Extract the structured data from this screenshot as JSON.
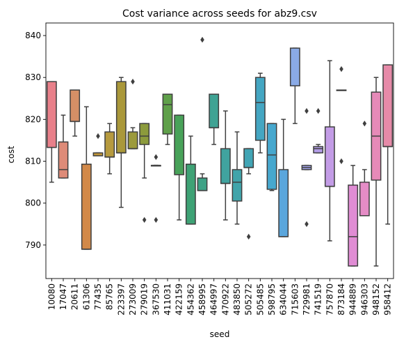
{
  "chart_data": {
    "type": "box",
    "title": "Cost variance across seeds for abz9.csv",
    "xlabel": "seed",
    "ylabel": "cost",
    "ylim": [
      782,
      843
    ],
    "yticks": [
      790,
      800,
      810,
      820,
      830,
      840
    ],
    "grid": false,
    "legend": "none",
    "boxes": [
      {
        "category": "10080",
        "color": "#E8808A",
        "whislo": 805,
        "q1": 813.3,
        "med": 813.3,
        "q3": 829,
        "whishi": 829,
        "fliers": []
      },
      {
        "category": "17047",
        "color": "#DE8B78",
        "whislo": 806,
        "q1": 806,
        "med": 808,
        "q3": 814.6,
        "whishi": 821,
        "fliers": []
      },
      {
        "category": "20611",
        "color": "#D58F66",
        "whislo": 816,
        "q1": 819.5,
        "med": 819.5,
        "q3": 827,
        "whishi": 827,
        "fliers": []
      },
      {
        "category": "61306",
        "color": "#D28949",
        "whislo": 789,
        "q1": 789,
        "med": 789,
        "q3": 809.3,
        "whishi": 823,
        "fliers": []
      },
      {
        "category": "77435",
        "color": "#C0963A",
        "whislo": 811.3,
        "q1": 811.3,
        "med": 811.3,
        "q3": 812,
        "whishi": 812,
        "fliers": [
          816
        ]
      },
      {
        "category": "85765",
        "color": "#B69A3E",
        "whislo": 807,
        "q1": 811,
        "med": 811,
        "q3": 817,
        "whishi": 819,
        "fliers": []
      },
      {
        "category": "223397",
        "color": "#AA983A",
        "whislo": 799,
        "q1": 812,
        "med": 812,
        "q3": 829,
        "whishi": 830,
        "fliers": []
      },
      {
        "category": "273009",
        "color": "#9C9A3C",
        "whislo": 813,
        "q1": 813,
        "med": 813,
        "q3": 817,
        "whishi": 818,
        "fliers": [
          829
        ]
      },
      {
        "category": "279019",
        "color": "#8C9B3C",
        "whislo": 806,
        "q1": 814,
        "med": 816,
        "q3": 819,
        "whishi": 819,
        "fliers": [
          796
        ]
      },
      {
        "category": "367530",
        "color": "#7A9C3E",
        "whislo": 809,
        "q1": 809,
        "med": 809,
        "q3": 809,
        "whishi": 809,
        "fliers": [
          811,
          796
        ]
      },
      {
        "category": "411031",
        "color": "#5FA04A",
        "whislo": 814,
        "q1": 816.5,
        "med": 823.5,
        "q3": 826,
        "whishi": 826,
        "fliers": []
      },
      {
        "category": "422159",
        "color": "#48A259",
        "whislo": 796,
        "q1": 806.8,
        "med": 806.8,
        "q3": 821,
        "whishi": 821,
        "fliers": []
      },
      {
        "category": "454362",
        "color": "#3EA275",
        "whislo": 795,
        "q1": 795,
        "med": 795,
        "q3": 809.3,
        "whishi": 816,
        "fliers": []
      },
      {
        "category": "458995",
        "color": "#3EA286",
        "whislo": 803,
        "q1": 803,
        "med": 803,
        "q3": 806,
        "whishi": 807,
        "fliers": [
          839
        ]
      },
      {
        "category": "464997",
        "color": "#3FA394",
        "whislo": 814,
        "q1": 818,
        "med": 818,
        "q3": 826,
        "whishi": 826,
        "fliers": []
      },
      {
        "category": "470922",
        "color": "#40A39F",
        "whislo": 796,
        "q1": 804.7,
        "med": 804.7,
        "q3": 813,
        "whishi": 822,
        "fliers": []
      },
      {
        "category": "483850",
        "color": "#41A4AA",
        "whislo": 795,
        "q1": 800.5,
        "med": 805,
        "q3": 808,
        "whishi": 817,
        "fliers": []
      },
      {
        "category": "505272",
        "color": "#42A5B5",
        "whislo": 807,
        "q1": 808.5,
        "med": 808.5,
        "q3": 813,
        "whishi": 813,
        "fliers": [
          792
        ]
      },
      {
        "category": "505485",
        "color": "#44A6C2",
        "whislo": 812,
        "q1": 815,
        "med": 824,
        "q3": 830,
        "whishi": 831,
        "fliers": []
      },
      {
        "category": "598795",
        "color": "#47A8CE",
        "whislo": 803,
        "q1": 803.3,
        "med": 811.5,
        "q3": 819,
        "whishi": 819,
        "fliers": []
      },
      {
        "category": "634044",
        "color": "#5AA6DC",
        "whislo": 792,
        "q1": 792,
        "med": 792,
        "q3": 808,
        "whishi": 820,
        "fliers": []
      },
      {
        "category": "715603",
        "color": "#8AAAE6",
        "whislo": 819,
        "q1": 828,
        "med": 828,
        "q3": 837,
        "whishi": 837,
        "fliers": []
      },
      {
        "category": "729981",
        "color": "#A2A4E8",
        "whislo": 808,
        "q1": 808,
        "med": 808.5,
        "q3": 809,
        "whishi": 809,
        "fliers": [
          822,
          795
        ]
      },
      {
        "category": "741519",
        "color": "#B39DE8",
        "whislo": 812,
        "q1": 812,
        "med": 813,
        "q3": 813.5,
        "whishi": 814,
        "fliers": [
          822
        ]
      },
      {
        "category": "757870",
        "color": "#C39CE6",
        "whislo": 791,
        "q1": 804,
        "med": 804,
        "q3": 818.2,
        "whishi": 834,
        "fliers": []
      },
      {
        "category": "873184",
        "color": "#D596E0",
        "whislo": 827,
        "q1": 827,
        "med": 827,
        "q3": 827,
        "whishi": 827,
        "fliers": [
          832,
          810
        ]
      },
      {
        "category": "944889",
        "color": "#E08CD4",
        "whislo": 785,
        "q1": 785,
        "med": 792,
        "q3": 804.3,
        "whishi": 809,
        "fliers": []
      },
      {
        "category": "946303",
        "color": "#E58CC6",
        "whislo": 797,
        "q1": 797,
        "med": 797,
        "q3": 805,
        "whishi": 808,
        "fliers": [
          819
        ]
      },
      {
        "category": "948152",
        "color": "#E68AB8",
        "whislo": 785,
        "q1": 805.5,
        "med": 816,
        "q3": 826.5,
        "whishi": 830,
        "fliers": []
      },
      {
        "category": "958412",
        "color": "#E68AA8",
        "whislo": 795,
        "q1": 813.5,
        "med": 813.5,
        "q3": 833,
        "whishi": 833,
        "fliers": []
      }
    ]
  }
}
